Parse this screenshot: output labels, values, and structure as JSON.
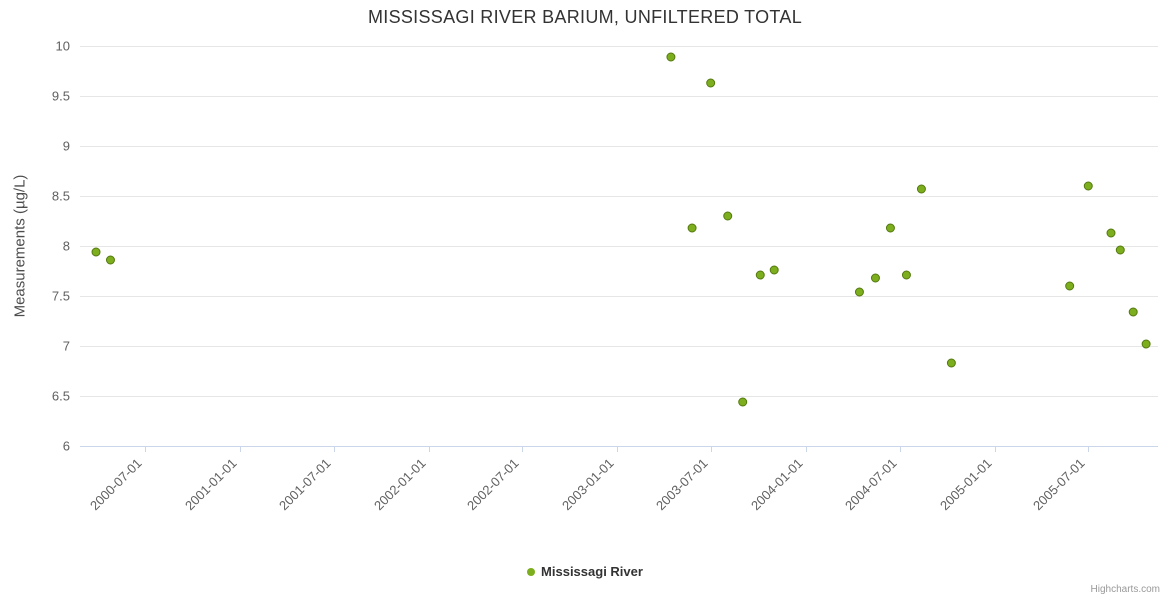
{
  "chart_data": {
    "type": "scatter",
    "title": "MISSISSAGI RIVER BARIUM, UNFILTERED TOTAL",
    "xlabel": "",
    "ylabel": "Measurements (µg/L)",
    "ylim": [
      6,
      10
    ],
    "y_ticks": [
      "6",
      "6.5",
      "7",
      "7.5",
      "8",
      "8.5",
      "9",
      "9.5",
      "10"
    ],
    "x_range": [
      "2000-02-26",
      "2005-11-13"
    ],
    "x_ticks": [
      "2000-07-01",
      "2001-01-01",
      "2001-07-01",
      "2002-01-01",
      "2002-07-01",
      "2003-01-01",
      "2003-07-01",
      "2004-01-01",
      "2004-07-01",
      "2005-01-01",
      "2005-07-01"
    ],
    "grid": true,
    "legend_position": "bottom",
    "series": [
      {
        "name": "Mississagi River",
        "color": "#7cae1e",
        "border_color": "#54790f",
        "points": [
          {
            "x": "2000-03-28",
            "y": 7.94
          },
          {
            "x": "2000-04-25",
            "y": 7.86
          },
          {
            "x": "2003-04-15",
            "y": 9.89
          },
          {
            "x": "2003-05-26",
            "y": 8.18
          },
          {
            "x": "2003-07-01",
            "y": 9.63
          },
          {
            "x": "2003-08-03",
            "y": 8.3
          },
          {
            "x": "2003-09-01",
            "y": 6.44
          },
          {
            "x": "2003-10-05",
            "y": 7.71
          },
          {
            "x": "2003-11-01",
            "y": 7.76
          },
          {
            "x": "2004-04-14",
            "y": 7.54
          },
          {
            "x": "2004-05-15",
            "y": 7.68
          },
          {
            "x": "2004-06-13",
            "y": 8.18
          },
          {
            "x": "2004-07-14",
            "y": 7.71
          },
          {
            "x": "2004-08-12",
            "y": 8.57
          },
          {
            "x": "2004-10-09",
            "y": 6.83
          },
          {
            "x": "2005-05-26",
            "y": 7.6
          },
          {
            "x": "2005-07-01",
            "y": 8.6
          },
          {
            "x": "2005-08-14",
            "y": 8.13
          },
          {
            "x": "2005-09-01",
            "y": 7.96
          },
          {
            "x": "2005-09-26",
            "y": 7.34
          },
          {
            "x": "2005-10-21",
            "y": 7.02
          }
        ]
      }
    ],
    "colors": {
      "grid_line": "#e6e6e6",
      "axis_line": "#ccd6eb",
      "tick_label": "#606060"
    }
  },
  "legend": {
    "items": [
      {
        "label": "Mississagi River",
        "color": "#7cae1e"
      }
    ]
  },
  "credits": {
    "label": "Highcharts.com"
  }
}
